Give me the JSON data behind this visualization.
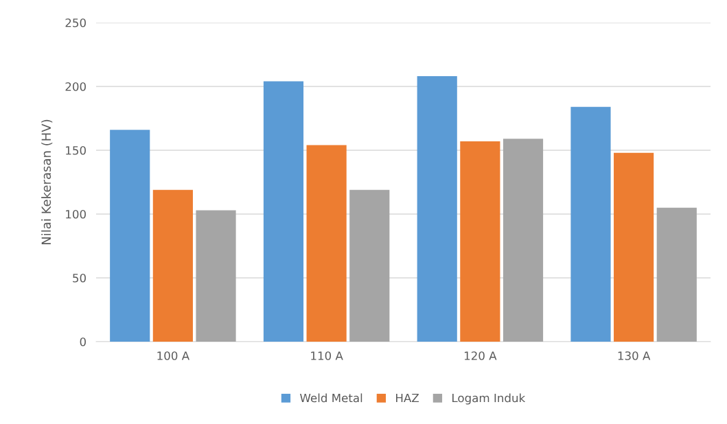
{
  "chart_data": {
    "type": "bar",
    "ylabel": "Nilai Kekerasan (HV)",
    "categories": [
      "100 A",
      "110 A",
      "120 A",
      "130 A"
    ],
    "series": [
      {
        "name": "Weld Metal",
        "color": "#5b9bd5",
        "values": [
          166,
          204,
          208,
          184
        ]
      },
      {
        "name": "HAZ",
        "color": "#ed7d31",
        "values": [
          119,
          154,
          157,
          148
        ]
      },
      {
        "name": "Logam Induk",
        "color": "#a5a5a5",
        "values": [
          103,
          119,
          159,
          105
        ]
      }
    ],
    "ylim": [
      0,
      250
    ],
    "yticks": [
      0,
      50,
      100,
      150,
      200,
      250
    ],
    "grid": "y",
    "legend": "bottom"
  }
}
